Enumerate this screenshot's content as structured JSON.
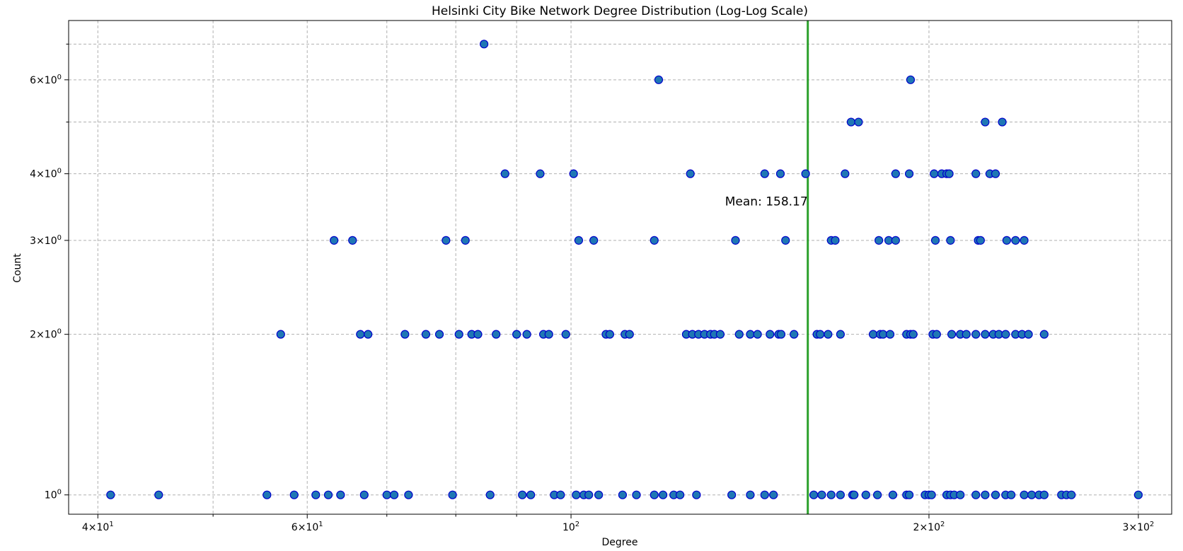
{
  "chart_data": {
    "type": "scatter",
    "title": "Helsinki City Bike Network Degree Distribution (Log-Log Scale)",
    "xlabel": "Degree",
    "ylabel": "Count",
    "x_scale": "log",
    "y_scale": "log",
    "xlim": [
      37.8,
      320
    ],
    "ylim": [
      0.92,
      7.75
    ],
    "grid": true,
    "x_major_ticks": [
      {
        "value": 40,
        "base": "4",
        "exp": "1",
        "times": true
      },
      {
        "value": 60,
        "base": "6",
        "exp": "1",
        "times": true
      },
      {
        "value": 100,
        "base": "10",
        "exp": "2",
        "times": false
      },
      {
        "value": 200,
        "base": "2",
        "exp": "2",
        "times": true
      },
      {
        "value": 300,
        "base": "3",
        "exp": "2",
        "times": true
      }
    ],
    "x_minor_ticks": [
      50,
      70,
      80,
      90
    ],
    "y_major_ticks": [
      {
        "value": 1,
        "base": "10",
        "exp": "0",
        "times": false
      },
      {
        "value": 2,
        "base": "2",
        "exp": "0",
        "times": true
      },
      {
        "value": 3,
        "base": "3",
        "exp": "0",
        "times": true
      },
      {
        "value": 4,
        "base": "4",
        "exp": "0",
        "times": true
      },
      {
        "value": 6,
        "base": "6",
        "exp": "0",
        "times": true
      }
    ],
    "y_minor_ticks": [
      5,
      7
    ],
    "mean_line": {
      "value": 158.17,
      "label": "Mean: 158.17",
      "color": "#2ca02c"
    },
    "point_color": "#1f77b4",
    "point_edge_color": "#0000cc",
    "points": [
      {
        "x": 84.5,
        "y": 7
      },
      {
        "x": 118.5,
        "y": 6
      },
      {
        "x": 193,
        "y": 6
      },
      {
        "x": 172,
        "y": 5
      },
      {
        "x": 174.5,
        "y": 5
      },
      {
        "x": 223,
        "y": 5
      },
      {
        "x": 230.5,
        "y": 5
      },
      {
        "x": 88.0,
        "y": 4
      },
      {
        "x": 94.2,
        "y": 4
      },
      {
        "x": 100.5,
        "y": 4
      },
      {
        "x": 126.0,
        "y": 4
      },
      {
        "x": 145.5,
        "y": 4
      },
      {
        "x": 150.0,
        "y": 4
      },
      {
        "x": 157.5,
        "y": 4
      },
      {
        "x": 170.0,
        "y": 4
      },
      {
        "x": 187.5,
        "y": 4
      },
      {
        "x": 192.5,
        "y": 4
      },
      {
        "x": 202.0,
        "y": 4
      },
      {
        "x": 205.0,
        "y": 4
      },
      {
        "x": 207.0,
        "y": 4
      },
      {
        "x": 208.0,
        "y": 4
      },
      {
        "x": 219.0,
        "y": 4
      },
      {
        "x": 225.0,
        "y": 4
      },
      {
        "x": 227.5,
        "y": 4
      },
      {
        "x": 63.2,
        "y": 3
      },
      {
        "x": 65.5,
        "y": 3
      },
      {
        "x": 78.5,
        "y": 3
      },
      {
        "x": 81.5,
        "y": 3
      },
      {
        "x": 101.5,
        "y": 3
      },
      {
        "x": 104.5,
        "y": 3
      },
      {
        "x": 117.5,
        "y": 3
      },
      {
        "x": 137.5,
        "y": 3
      },
      {
        "x": 151.5,
        "y": 3
      },
      {
        "x": 165.5,
        "y": 3
      },
      {
        "x": 166.8,
        "y": 3
      },
      {
        "x": 181.5,
        "y": 3
      },
      {
        "x": 185.0,
        "y": 3
      },
      {
        "x": 187.5,
        "y": 3
      },
      {
        "x": 202.5,
        "y": 3
      },
      {
        "x": 208.5,
        "y": 3
      },
      {
        "x": 220.0,
        "y": 3
      },
      {
        "x": 221.0,
        "y": 3
      },
      {
        "x": 232.5,
        "y": 3
      },
      {
        "x": 236.5,
        "y": 3
      },
      {
        "x": 240.5,
        "y": 3
      },
      {
        "x": 57.0,
        "y": 2
      },
      {
        "x": 66.5,
        "y": 2
      },
      {
        "x": 67.5,
        "y": 2
      },
      {
        "x": 72.5,
        "y": 2
      },
      {
        "x": 75.5,
        "y": 2
      },
      {
        "x": 77.5,
        "y": 2
      },
      {
        "x": 80.5,
        "y": 2
      },
      {
        "x": 82.5,
        "y": 2
      },
      {
        "x": 83.5,
        "y": 2
      },
      {
        "x": 86.5,
        "y": 2
      },
      {
        "x": 90.0,
        "y": 2
      },
      {
        "x": 91.8,
        "y": 2
      },
      {
        "x": 94.8,
        "y": 2
      },
      {
        "x": 95.8,
        "y": 2
      },
      {
        "x": 99.0,
        "y": 2
      },
      {
        "x": 107.0,
        "y": 2
      },
      {
        "x": 107.8,
        "y": 2
      },
      {
        "x": 111.0,
        "y": 2
      },
      {
        "x": 112.0,
        "y": 2
      },
      {
        "x": 125.0,
        "y": 2
      },
      {
        "x": 126.5,
        "y": 2
      },
      {
        "x": 128.0,
        "y": 2
      },
      {
        "x": 129.5,
        "y": 2
      },
      {
        "x": 131.0,
        "y": 2
      },
      {
        "x": 132.0,
        "y": 2
      },
      {
        "x": 133.5,
        "y": 2
      },
      {
        "x": 138.5,
        "y": 2
      },
      {
        "x": 141.5,
        "y": 2
      },
      {
        "x": 143.5,
        "y": 2
      },
      {
        "x": 147.0,
        "y": 2
      },
      {
        "x": 149.5,
        "y": 2
      },
      {
        "x": 150.2,
        "y": 2
      },
      {
        "x": 154.0,
        "y": 2
      },
      {
        "x": 161.0,
        "y": 2
      },
      {
        "x": 162.0,
        "y": 2
      },
      {
        "x": 164.5,
        "y": 2
      },
      {
        "x": 168.5,
        "y": 2
      },
      {
        "x": 179.5,
        "y": 2
      },
      {
        "x": 182.0,
        "y": 2
      },
      {
        "x": 183.0,
        "y": 2
      },
      {
        "x": 185.5,
        "y": 2
      },
      {
        "x": 191.5,
        "y": 2
      },
      {
        "x": 193.0,
        "y": 2
      },
      {
        "x": 194.0,
        "y": 2
      },
      {
        "x": 201.5,
        "y": 2
      },
      {
        "x": 203.0,
        "y": 2
      },
      {
        "x": 209.0,
        "y": 2
      },
      {
        "x": 212.5,
        "y": 2
      },
      {
        "x": 215.0,
        "y": 2
      },
      {
        "x": 219.0,
        "y": 2
      },
      {
        "x": 223.0,
        "y": 2
      },
      {
        "x": 226.5,
        "y": 2
      },
      {
        "x": 229.0,
        "y": 2
      },
      {
        "x": 232.0,
        "y": 2
      },
      {
        "x": 236.5,
        "y": 2
      },
      {
        "x": 239.5,
        "y": 2
      },
      {
        "x": 242.5,
        "y": 2
      },
      {
        "x": 250.0,
        "y": 2
      },
      {
        "x": 41.0,
        "y": 1
      },
      {
        "x": 45.0,
        "y": 1
      },
      {
        "x": 55.5,
        "y": 1
      },
      {
        "x": 58.5,
        "y": 1
      },
      {
        "x": 61.0,
        "y": 1
      },
      {
        "x": 62.5,
        "y": 1
      },
      {
        "x": 64.0,
        "y": 1
      },
      {
        "x": 67.0,
        "y": 1
      },
      {
        "x": 70.0,
        "y": 1
      },
      {
        "x": 71.0,
        "y": 1
      },
      {
        "x": 73.0,
        "y": 1
      },
      {
        "x": 79.5,
        "y": 1
      },
      {
        "x": 85.5,
        "y": 1
      },
      {
        "x": 91.0,
        "y": 1
      },
      {
        "x": 92.5,
        "y": 1
      },
      {
        "x": 96.8,
        "y": 1
      },
      {
        "x": 98.0,
        "y": 1
      },
      {
        "x": 101.0,
        "y": 1
      },
      {
        "x": 102.5,
        "y": 1
      },
      {
        "x": 103.5,
        "y": 1
      },
      {
        "x": 105.5,
        "y": 1
      },
      {
        "x": 110.5,
        "y": 1
      },
      {
        "x": 113.5,
        "y": 1
      },
      {
        "x": 117.5,
        "y": 1
      },
      {
        "x": 119.5,
        "y": 1
      },
      {
        "x": 122.0,
        "y": 1
      },
      {
        "x": 123.5,
        "y": 1
      },
      {
        "x": 127.5,
        "y": 1
      },
      {
        "x": 136.5,
        "y": 1
      },
      {
        "x": 141.5,
        "y": 1
      },
      {
        "x": 145.5,
        "y": 1
      },
      {
        "x": 148.0,
        "y": 1
      },
      {
        "x": 160.0,
        "y": 1
      },
      {
        "x": 162.5,
        "y": 1
      },
      {
        "x": 165.5,
        "y": 1
      },
      {
        "x": 168.5,
        "y": 1
      },
      {
        "x": 172.5,
        "y": 1
      },
      {
        "x": 173.0,
        "y": 1
      },
      {
        "x": 177.0,
        "y": 1
      },
      {
        "x": 181.0,
        "y": 1
      },
      {
        "x": 186.5,
        "y": 1
      },
      {
        "x": 191.5,
        "y": 1
      },
      {
        "x": 192.5,
        "y": 1
      },
      {
        "x": 198.5,
        "y": 1
      },
      {
        "x": 200.0,
        "y": 1
      },
      {
        "x": 201.0,
        "y": 1
      },
      {
        "x": 207.0,
        "y": 1
      },
      {
        "x": 208.5,
        "y": 1
      },
      {
        "x": 210.0,
        "y": 1
      },
      {
        "x": 212.5,
        "y": 1
      },
      {
        "x": 219.0,
        "y": 1
      },
      {
        "x": 223.0,
        "y": 1
      },
      {
        "x": 227.5,
        "y": 1
      },
      {
        "x": 232.0,
        "y": 1
      },
      {
        "x": 234.5,
        "y": 1
      },
      {
        "x": 240.5,
        "y": 1
      },
      {
        "x": 244.0,
        "y": 1
      },
      {
        "x": 247.5,
        "y": 1
      },
      {
        "x": 250.0,
        "y": 1
      },
      {
        "x": 258.5,
        "y": 1
      },
      {
        "x": 261.0,
        "y": 1
      },
      {
        "x": 263.5,
        "y": 1
      },
      {
        "x": 300.0,
        "y": 1
      }
    ]
  }
}
